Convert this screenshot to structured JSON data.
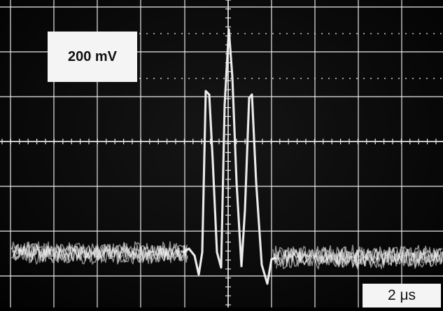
{
  "image": {
    "description_labels": {
      "volts_per_div": "200 mV",
      "time_per_div": "2 μs"
    },
    "colors": {
      "screen": "#050505",
      "graticule": "#e8e8e8",
      "trace": "#f2f2f2",
      "label_bg": "#f4f4f4"
    }
  }
}
